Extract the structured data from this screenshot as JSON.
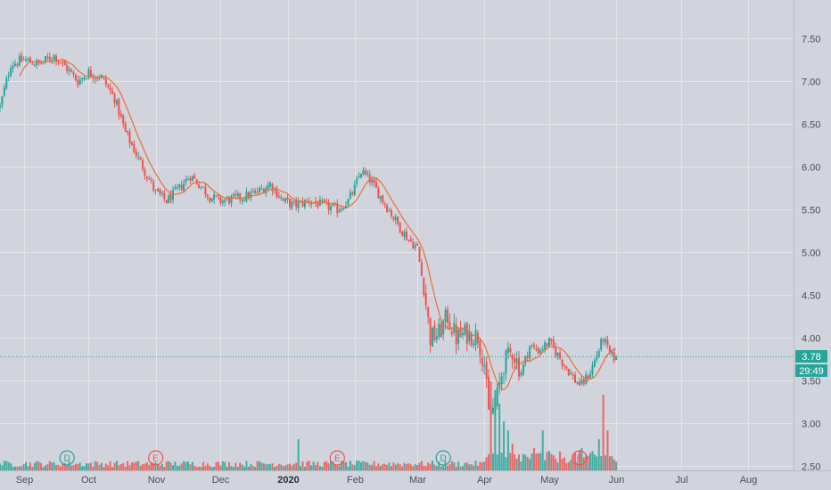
{
  "chart_data": {
    "type": "candlestick",
    "y_ticks": [
      "7.50",
      "7.00",
      "6.50",
      "6.00",
      "5.50",
      "5.00",
      "4.50",
      "4.00",
      "3.50",
      "3.00",
      "2.50"
    ],
    "y_tick_values": [
      7.5,
      7.0,
      6.5,
      6.0,
      5.5,
      5.0,
      4.5,
      4.0,
      3.5,
      3.0,
      2.5
    ],
    "ylim": [
      2.45,
      7.95
    ],
    "x_labels": [
      {
        "label": "Sep",
        "day": 0
      },
      {
        "label": "Oct",
        "day": 30
      },
      {
        "label": "Nov",
        "day": 61
      },
      {
        "label": "Dec",
        "day": 91
      },
      {
        "label": "2020",
        "day": 122,
        "bold": true
      },
      {
        "label": "Feb",
        "day": 153
      },
      {
        "label": "Mar",
        "day": 182
      },
      {
        "label": "Apr",
        "day": 213
      },
      {
        "label": "May",
        "day": 243
      },
      {
        "label": "Jun",
        "day": 274
      },
      {
        "label": "Jul",
        "day": 304
      },
      {
        "label": "Aug",
        "day": 335
      }
    ],
    "xlim": [
      -11,
      356
    ],
    "last_price": "3.78",
    "last_price_value": 3.78,
    "countdown": "29:49",
    "price_control_points": [
      [
        -11,
        6.7
      ],
      [
        -6,
        7.2
      ],
      [
        0,
        7.25
      ],
      [
        7,
        7.2
      ],
      [
        14,
        7.3
      ],
      [
        20,
        7.15
      ],
      [
        25,
        7.0
      ],
      [
        30,
        7.1
      ],
      [
        36,
        7.05
      ],
      [
        42,
        6.8
      ],
      [
        47,
        6.4
      ],
      [
        52,
        6.15
      ],
      [
        57,
        5.9
      ],
      [
        61,
        5.7
      ],
      [
        66,
        5.6
      ],
      [
        72,
        5.75
      ],
      [
        77,
        5.9
      ],
      [
        81,
        5.8
      ],
      [
        86,
        5.65
      ],
      [
        91,
        5.6
      ],
      [
        96,
        5.62
      ],
      [
        102,
        5.65
      ],
      [
        108,
        5.7
      ],
      [
        114,
        5.8
      ],
      [
        120,
        5.6
      ],
      [
        125,
        5.55
      ],
      [
        132,
        5.6
      ],
      [
        138,
        5.55
      ],
      [
        145,
        5.5
      ],
      [
        150,
        5.6
      ],
      [
        153,
        5.75
      ],
      [
        156,
        5.95
      ],
      [
        160,
        5.85
      ],
      [
        165,
        5.65
      ],
      [
        170,
        5.45
      ],
      [
        175,
        5.25
      ],
      [
        178,
        5.15
      ],
      [
        182,
        5.05
      ],
      [
        186,
        4.4
      ],
      [
        188,
        4.0
      ],
      [
        192,
        4.05
      ],
      [
        196,
        4.25
      ],
      [
        200,
        4.0
      ],
      [
        205,
        4.05
      ],
      [
        210,
        4.02
      ],
      [
        213,
        3.7
      ],
      [
        215,
        3.1
      ],
      [
        218,
        3.2
      ],
      [
        222,
        3.7
      ],
      [
        226,
        3.85
      ],
      [
        230,
        3.6
      ],
      [
        234,
        3.9
      ],
      [
        238,
        3.85
      ],
      [
        243,
        3.95
      ],
      [
        247,
        3.8
      ],
      [
        251,
        3.65
      ],
      [
        255,
        3.5
      ],
      [
        258,
        3.45
      ],
      [
        262,
        3.6
      ],
      [
        265,
        3.8
      ],
      [
        268,
        4.0
      ],
      [
        271,
        3.8
      ],
      [
        274,
        3.76
      ]
    ],
    "sma_period": 10,
    "volume_events": [
      {
        "day": 127,
        "height": 0.35
      },
      {
        "day": 216,
        "height": 1.0
      },
      {
        "day": 218,
        "height": 0.9
      },
      {
        "day": 220,
        "height": 0.75
      },
      {
        "day": 222,
        "height": 0.55
      },
      {
        "day": 224,
        "height": 0.45
      },
      {
        "day": 226,
        "height": 0.3
      },
      {
        "day": 236,
        "height": 0.25
      },
      {
        "day": 240,
        "height": 0.45
      },
      {
        "day": 258,
        "height": 0.25
      },
      {
        "day": 266,
        "height": 0.35
      },
      {
        "day": 268,
        "height": 0.85
      },
      {
        "day": 270,
        "height": 0.45
      }
    ],
    "event_markers": [
      {
        "letter": "D",
        "day": 20,
        "color": "#26a69a"
      },
      {
        "letter": "E",
        "day": 61,
        "color": "#ef5350"
      },
      {
        "letter": "E",
        "day": 145,
        "color": "#ef5350"
      },
      {
        "letter": "D",
        "day": 194,
        "color": "#26a69a"
      },
      {
        "letter": "E",
        "day": 257,
        "color": "#ef5350"
      }
    ],
    "colors": {
      "background": "#d1d4dc",
      "grid": "#e3e5ea",
      "up": "#26a69a",
      "down": "#ef5350",
      "sma": "#e8703a",
      "price_line": "#26a69a",
      "axis_text": "#4a4e5a"
    },
    "grid": true
  }
}
